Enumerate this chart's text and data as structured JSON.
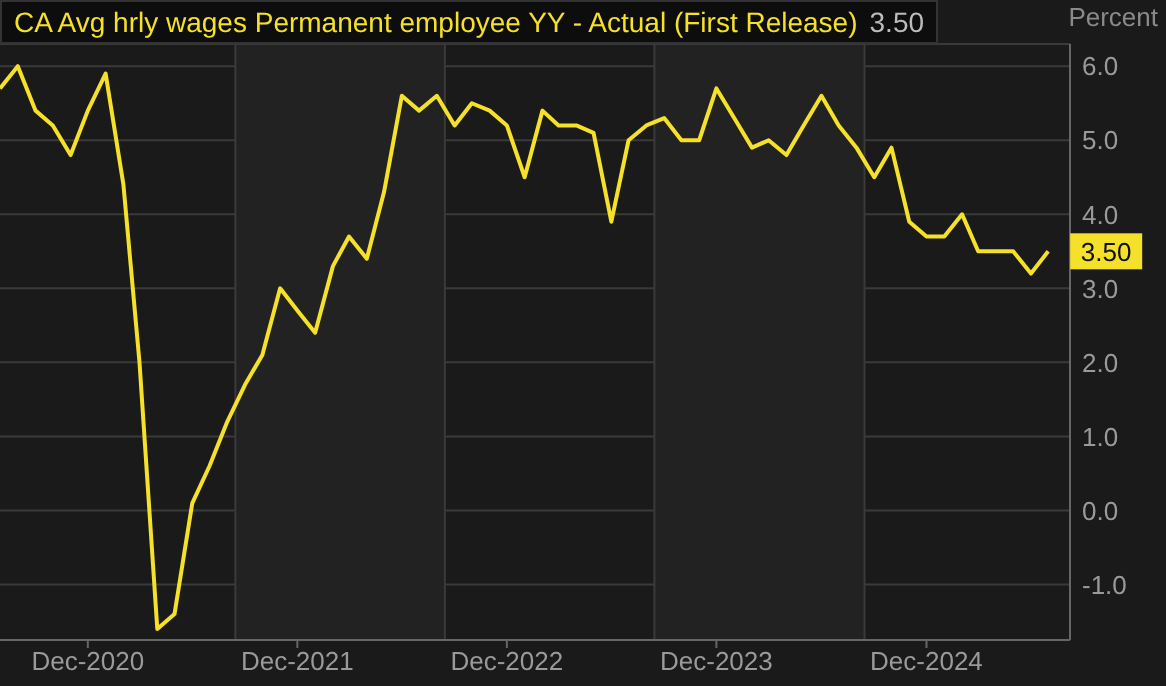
{
  "chart_data": {
    "type": "line",
    "x": [
      "2020-07",
      "2020-08",
      "2020-09",
      "2020-10",
      "2020-11",
      "2020-12",
      "2021-01",
      "2021-02",
      "2021-03",
      "2021-04",
      "2021-05",
      "2021-06",
      "2021-07",
      "2021-08",
      "2021-09",
      "2021-10",
      "2021-11",
      "2021-12",
      "2022-01",
      "2022-02",
      "2022-03",
      "2022-04",
      "2022-05",
      "2022-06",
      "2022-07",
      "2022-08",
      "2022-09",
      "2022-10",
      "2022-11",
      "2022-12",
      "2023-01",
      "2023-02",
      "2023-03",
      "2023-04",
      "2023-05",
      "2023-06",
      "2023-07",
      "2023-08",
      "2023-09",
      "2023-10",
      "2023-11",
      "2023-12",
      "2024-01",
      "2024-02",
      "2024-03",
      "2024-04",
      "2024-05",
      "2024-06",
      "2024-07",
      "2024-08",
      "2024-09",
      "2024-10",
      "2024-11",
      "2024-12",
      "2025-01",
      "2025-02",
      "2025-03",
      "2025-04",
      "2025-05",
      "2025-06",
      "2025-07"
    ],
    "series": [
      {
        "name": "CA Avg hrly wages Permanent employee YY - Actual (First Release)",
        "color": "#f5e02a",
        "values": [
          5.7,
          6.0,
          5.4,
          5.2,
          4.8,
          5.4,
          5.9,
          4.4,
          2.0,
          -1.6,
          -1.4,
          0.1,
          0.6,
          1.2,
          1.7,
          2.1,
          3.0,
          2.7,
          2.4,
          3.3,
          3.7,
          3.4,
          4.3,
          5.6,
          5.4,
          5.6,
          5.2,
          5.5,
          5.4,
          5.2,
          4.5,
          5.4,
          5.2,
          5.2,
          5.1,
          3.9,
          5.0,
          5.2,
          5.3,
          5.0,
          5.0,
          5.7,
          5.3,
          4.9,
          5.0,
          4.8,
          5.2,
          5.6,
          5.2,
          4.9,
          4.5,
          4.9,
          3.9,
          3.7,
          3.7,
          4.0,
          3.5,
          3.5,
          3.5,
          3.2,
          3.5
        ]
      }
    ],
    "ylabel": "Percent",
    "annotations": [
      "3.50",
      {
        "text": "3.50",
        "x": "2025-07",
        "y": 3.5
      }
    ],
    "xlim": [
      "2020-07",
      "2025-08-08"
    ],
    "xticks": [
      {
        "value": "2020-12",
        "label": "Dec-2020"
      },
      {
        "value": "2021-12",
        "label": "Dec-2021"
      },
      {
        "value": "2022-12",
        "label": "Dec-2022"
      },
      {
        "value": "2023-12",
        "label": "Dec-2023"
      },
      {
        "value": "2024-12",
        "label": "Dec-2024"
      }
    ],
    "ylim": [
      -1.75,
      6.3
    ],
    "yticks": [
      {
        "value": -1,
        "label": "-1.0"
      },
      {
        "value": 0,
        "label": "0.0"
      },
      {
        "value": 1,
        "label": "1.0"
      },
      {
        "value": 2,
        "label": "2.0"
      },
      {
        "value": 3,
        "label": "3.0"
      },
      {
        "value": 4,
        "label": "4.0"
      },
      {
        "value": 5,
        "label": "5.0"
      },
      {
        "value": 6,
        "label": "6.0"
      }
    ],
    "bands": [
      {
        "axis": "x",
        "from": "2021-08-15",
        "to": "2022-08-15",
        "color": "#222222"
      },
      {
        "axis": "x",
        "from": "2023-08-15",
        "to": "2024-08-15",
        "color": "#222222"
      }
    ],
    "grid": "y",
    "legend": "top left",
    "marker": "none",
    "line_style": "solid"
  }
}
